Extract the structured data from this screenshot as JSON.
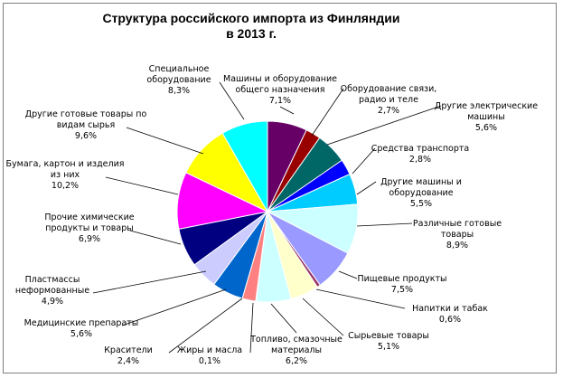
{
  "chart_data": {
    "type": "pie",
    "title_line1": "Структура российского импорта из Финляндии",
    "title_line2": "в 2013 г.",
    "slices": [
      {
        "label": [
          "Машины и оборудование",
          "общего назначения"
        ],
        "value_text": "7,1%",
        "value": 7.1,
        "color": "#660066"
      },
      {
        "label": [
          "Оборудование связи,",
          "радио и теле"
        ],
        "value_text": "2,7%",
        "value": 2.7,
        "color": "#990000"
      },
      {
        "label": [
          "Другие электрические",
          "машины"
        ],
        "value_text": "5,6%",
        "value": 5.6,
        "color": "#006666"
      },
      {
        "label": [
          "Средства транспорта"
        ],
        "value_text": "2,8%",
        "value": 2.8,
        "color": "#0000ff"
      },
      {
        "label": [
          "Другие машины и",
          "оборудование"
        ],
        "value_text": "5,5%",
        "value": 5.5,
        "color": "#00ccff"
      },
      {
        "label": [
          "Различные готовые",
          "товары"
        ],
        "value_text": "8,9%",
        "value": 8.9,
        "color": "#ccffff"
      },
      {
        "label": [
          "Пищевые продукты"
        ],
        "value_text": "7,5%",
        "value": 7.5,
        "color": "#9999ff"
      },
      {
        "label": [
          "Напитки и табак"
        ],
        "value_text": "0,6%",
        "value": 0.6,
        "color": "#993366"
      },
      {
        "label": [
          "Сырьевые товары"
        ],
        "value_text": "5,1%",
        "value": 5.1,
        "color": "#ffffcc"
      },
      {
        "label": [
          "Топливо, смазочные",
          "материалы"
        ],
        "value_text": "6,2%",
        "value": 6.2,
        "color": "#ccffff"
      },
      {
        "label": [
          "Жиры и масла"
        ],
        "value_text": "0,1%",
        "value": 0.1,
        "color": "#006666"
      },
      {
        "label": [
          "Красители"
        ],
        "value_text": "2,4%",
        "value": 2.4,
        "color": "#ff8080"
      },
      {
        "label": [
          "Медицинские препараты"
        ],
        "value_text": "5,6%",
        "value": 5.6,
        "color": "#0066cc"
      },
      {
        "label": [
          "Пластмассы",
          "неформованные"
        ],
        "value_text": "4,9%",
        "value": 4.9,
        "color": "#ccccff"
      },
      {
        "label": [
          "Прочие химические",
          "продукты и товары"
        ],
        "value_text": "6,9%",
        "value": 6.9,
        "color": "#000080"
      },
      {
        "label": [
          "Бумага, картон и изделия",
          "из них"
        ],
        "value_text": "10,2%",
        "value": 10.2,
        "color": "#ff00ff"
      },
      {
        "label": [
          "Другие готовые товары по",
          "видам сырья"
        ],
        "value_text": "9,6%",
        "value": 9.6,
        "color": "#ffff00"
      },
      {
        "label": [
          "Специальное",
          "оборудование"
        ],
        "value_text": "8,3%",
        "value": 8.3,
        "color": "#00ffff"
      }
    ]
  }
}
